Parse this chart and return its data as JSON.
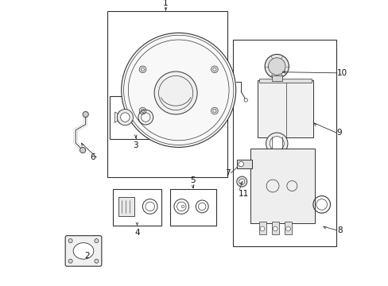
{
  "bg_color": "#ffffff",
  "line_color": "#333333",
  "fig_width": 4.89,
  "fig_height": 3.6,
  "dpi": 100,
  "boxes": {
    "booster": [
      0.195,
      0.38,
      0.615,
      0.96
    ],
    "master": [
      0.635,
      0.14,
      0.995,
      0.86
    ],
    "item3": [
      0.205,
      0.515,
      0.385,
      0.665
    ],
    "item4": [
      0.215,
      0.21,
      0.385,
      0.34
    ],
    "item5": [
      0.415,
      0.21,
      0.575,
      0.34
    ]
  },
  "label_positions": {
    "1": [
      0.4,
      0.975,
      "center",
      "bottom"
    ],
    "2": [
      0.135,
      0.105,
      "right",
      "center"
    ],
    "3": [
      0.295,
      0.505,
      "center",
      "top"
    ],
    "4": [
      0.3,
      0.2,
      "center",
      "top"
    ],
    "5": [
      0.495,
      0.355,
      "center",
      "bottom"
    ],
    "6": [
      0.155,
      0.45,
      "right",
      "center"
    ],
    "7": [
      0.625,
      0.395,
      "right",
      "center"
    ],
    "8": [
      0.998,
      0.195,
      "left",
      "center"
    ],
    "9": [
      0.998,
      0.535,
      "left",
      "center"
    ],
    "10": [
      0.998,
      0.745,
      "left",
      "center"
    ],
    "11": [
      0.655,
      0.335,
      "left",
      "top"
    ]
  }
}
